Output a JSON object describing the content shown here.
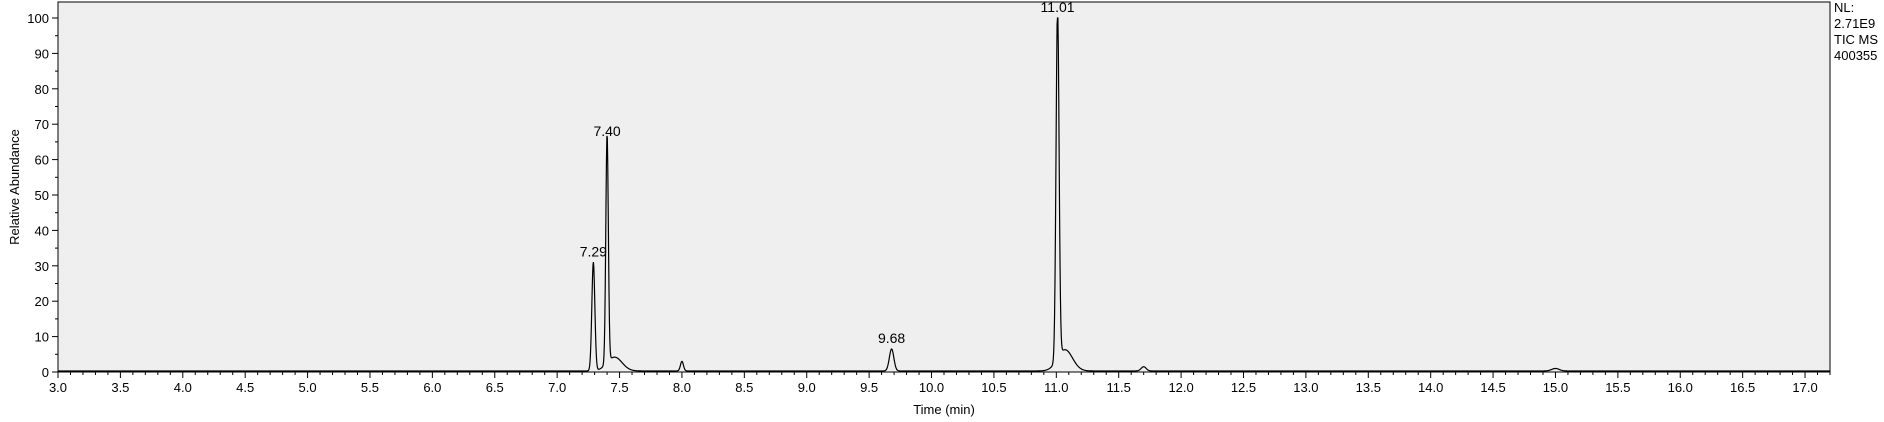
{
  "chart_data": {
    "type": "line",
    "title": "",
    "xlabel": "Time (min)",
    "ylabel": "Relative Abundance",
    "xlim": [
      3.0,
      17.2
    ],
    "ylim": [
      0,
      100
    ],
    "x_ticks": [
      "3.0",
      "3.5",
      "4.0",
      "4.5",
      "5.0",
      "5.5",
      "6.0",
      "6.5",
      "7.0",
      "7.5",
      "8.0",
      "8.5",
      "9.0",
      "9.5",
      "10.0",
      "10.5",
      "11.0",
      "11.5",
      "12.0",
      "12.5",
      "13.0",
      "13.5",
      "14.0",
      "14.5",
      "15.0",
      "15.5",
      "16.0",
      "16.5",
      "17.0"
    ],
    "y_ticks": [
      "0",
      "10",
      "20",
      "30",
      "40",
      "50",
      "60",
      "70",
      "80",
      "90",
      "100"
    ],
    "grid": false,
    "colors": {
      "plot_background": "#efefef",
      "trace": "#000000"
    },
    "baseline": 0.3,
    "info_box": [
      "NL:",
      "2.71E9",
      "TIC  MS",
      "400355"
    ],
    "peaks": [
      {
        "x": 7.29,
        "y": 31,
        "label": "7.29"
      },
      {
        "x": 7.4,
        "y": 65,
        "label": "7.40"
      },
      {
        "x": 8.0,
        "y": 3,
        "label": ""
      },
      {
        "x": 9.68,
        "y": 6.5,
        "label": "9.68"
      },
      {
        "x": 11.01,
        "y": 100,
        "label": "11.01"
      },
      {
        "x": 11.7,
        "y": 1.5,
        "label": ""
      },
      {
        "x": 15.0,
        "y": 1,
        "label": ""
      }
    ]
  }
}
